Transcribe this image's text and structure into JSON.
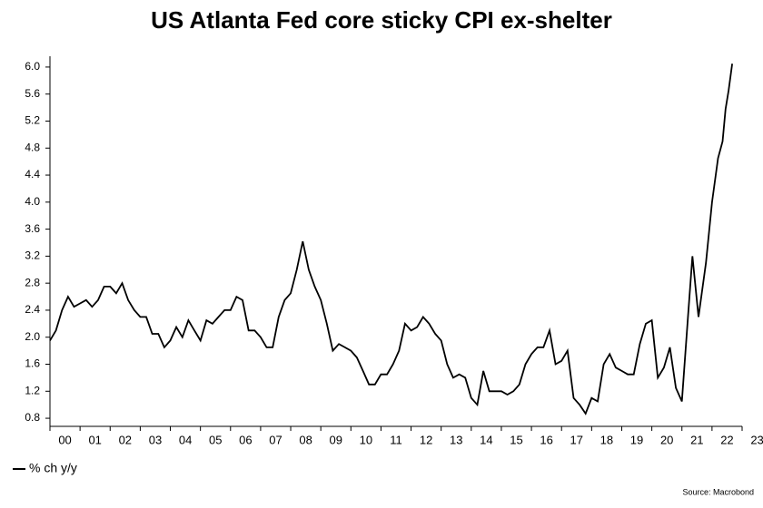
{
  "chart_data": {
    "type": "line",
    "title": "US Atlanta Fed core sticky CPI ex-shelter",
    "source": "Source: Macrobond",
    "x": [
      2000,
      2000.2,
      2000.4,
      2000.6,
      2000.8,
      2001,
      2001.2,
      2001.4,
      2001.6,
      2001.8,
      2002,
      2002.2,
      2002.4,
      2002.6,
      2002.8,
      2003,
      2003.2,
      2003.4,
      2003.6,
      2003.8,
      2004,
      2004.2,
      2004.4,
      2004.6,
      2004.8,
      2005,
      2005.2,
      2005.4,
      2005.6,
      2005.8,
      2006,
      2006.2,
      2006.4,
      2006.6,
      2006.8,
      2007,
      2007.2,
      2007.4,
      2007.6,
      2007.8,
      2008,
      2008.2,
      2008.4,
      2008.6,
      2008.8,
      2009,
      2009.2,
      2009.4,
      2009.6,
      2009.8,
      2010,
      2010.2,
      2010.4,
      2010.6,
      2010.8,
      2011,
      2011.2,
      2011.4,
      2011.6,
      2011.8,
      2012,
      2012.2,
      2012.4,
      2012.6,
      2012.8,
      2013,
      2013.2,
      2013.4,
      2013.6,
      2013.8,
      2014,
      2014.2,
      2014.4,
      2014.6,
      2014.8,
      2015,
      2015.2,
      2015.4,
      2015.6,
      2015.8,
      2016,
      2016.2,
      2016.4,
      2016.6,
      2016.8,
      2017,
      2017.2,
      2017.4,
      2017.6,
      2017.8,
      2018,
      2018.2,
      2018.4,
      2018.6,
      2018.8,
      2019,
      2019.2,
      2019.4,
      2019.6,
      2019.8,
      2020,
      2020.2,
      2020.4,
      2020.6,
      2020.8,
      2021,
      2021.2,
      2021.35,
      2021.55,
      2021.8,
      2022,
      2022.2,
      2022.35,
      2022.45,
      2022.55,
      2022.67
    ],
    "series": [
      {
        "name": "% ch y/y",
        "color": "#000000",
        "values": [
          1.95,
          2.1,
          2.4,
          2.6,
          2.45,
          2.5,
          2.55,
          2.45,
          2.55,
          2.75,
          2.75,
          2.65,
          2.8,
          2.55,
          2.4,
          2.3,
          2.3,
          2.05,
          2.05,
          1.85,
          1.95,
          2.15,
          2.0,
          2.25,
          2.1,
          1.95,
          2.25,
          2.2,
          2.3,
          2.4,
          2.4,
          2.6,
          2.55,
          2.1,
          2.1,
          2.0,
          1.85,
          1.85,
          2.3,
          2.55,
          2.65,
          3.0,
          3.42,
          3.0,
          2.75,
          2.55,
          2.2,
          1.8,
          1.9,
          1.85,
          1.8,
          1.7,
          1.5,
          1.3,
          1.3,
          1.45,
          1.45,
          1.6,
          1.8,
          2.2,
          2.1,
          2.15,
          2.3,
          2.2,
          2.05,
          1.95,
          1.6,
          1.4,
          1.45,
          1.4,
          1.1,
          1.0,
          1.5,
          1.2,
          1.2,
          1.2,
          1.15,
          1.2,
          1.3,
          1.6,
          1.75,
          1.85,
          1.85,
          2.1,
          1.6,
          1.65,
          1.8,
          1.1,
          1.0,
          0.87,
          1.1,
          1.05,
          1.6,
          1.75,
          1.55,
          1.5,
          1.45,
          1.45,
          1.9,
          2.2,
          2.25,
          1.4,
          1.55,
          1.85,
          1.25,
          1.05,
          2.3,
          3.2,
          2.3,
          3.1,
          4.0,
          4.65,
          4.9,
          5.38,
          5.65,
          6.05
        ]
      }
    ],
    "xlim": [
      2000,
      2023
    ],
    "xticks": [
      {
        "value": 2000,
        "label": "00"
      },
      {
        "value": 2001,
        "label": "01"
      },
      {
        "value": 2002,
        "label": "02"
      },
      {
        "value": 2003,
        "label": "03"
      },
      {
        "value": 2004,
        "label": "04"
      },
      {
        "value": 2005,
        "label": "05"
      },
      {
        "value": 2006,
        "label": "06"
      },
      {
        "value": 2007,
        "label": "07"
      },
      {
        "value": 2008,
        "label": "08"
      },
      {
        "value": 2009,
        "label": "09"
      },
      {
        "value": 2010,
        "label": "10"
      },
      {
        "value": 2011,
        "label": "11"
      },
      {
        "value": 2012,
        "label": "12"
      },
      {
        "value": 2013,
        "label": "13"
      },
      {
        "value": 2014,
        "label": "14"
      },
      {
        "value": 2015,
        "label": "15"
      },
      {
        "value": 2016,
        "label": "16"
      },
      {
        "value": 2017,
        "label": "17"
      },
      {
        "value": 2018,
        "label": "18"
      },
      {
        "value": 2019,
        "label": "19"
      },
      {
        "value": 2020,
        "label": "20"
      },
      {
        "value": 2021,
        "label": "21"
      },
      {
        "value": 2022,
        "label": "22"
      },
      {
        "value": 2023,
        "label": "23"
      }
    ],
    "ylim": [
      0.68,
      6.16
    ],
    "yticks": [
      0.8,
      1.2,
      1.6,
      {
        "value": 2.0,
        "label": "2.0"
      },
      2.4,
      2.8,
      3.2,
      3.6,
      {
        "value": 4.0,
        "label": "4.0"
      },
      4.4,
      4.8,
      5.2,
      5.6,
      {
        "value": 6.0,
        "label": "6.0"
      }
    ],
    "grid": false
  }
}
